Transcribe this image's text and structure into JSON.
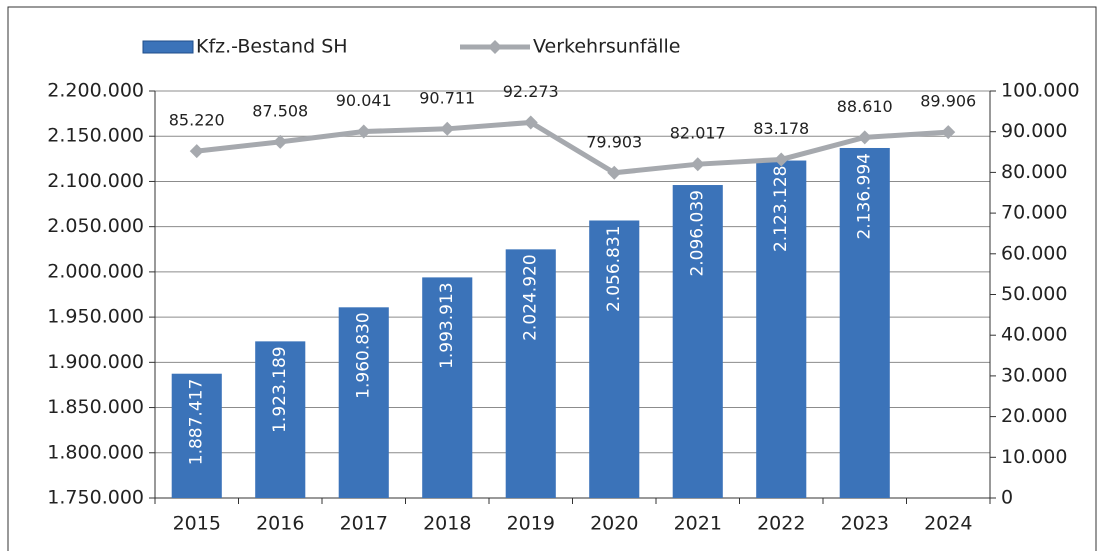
{
  "chart_data": {
    "type": "bar",
    "categories": [
      "2015",
      "2016",
      "2017",
      "2018",
      "2019",
      "2020",
      "2021",
      "2022",
      "2023",
      "2024"
    ],
    "series": [
      {
        "name": "Kfz.-Bestand SH",
        "color": "#3b73b9",
        "type": "bar",
        "values": [
          1887417,
          1923189,
          1960830,
          1993913,
          2024920,
          2056831,
          2096039,
          2123128,
          2136994,
          null
        ],
        "value_labels": [
          "1.887.417",
          "1.923.189",
          "1.960.830",
          "1.993.913",
          "2.024.920",
          "2.056.831",
          "2.096.039",
          "2.123.128",
          "2.136.994",
          null
        ]
      },
      {
        "name": "Verkehrsunfälle",
        "color": "#a6a9ae",
        "type": "line",
        "axis": "y2",
        "values": [
          85220,
          87508,
          90041,
          90711,
          92273,
          79903,
          82017,
          83178,
          88610,
          89906
        ],
        "value_labels": [
          "85.220",
          "87.508",
          "90.041",
          "90.711",
          "92.273",
          "79.903",
          "82.017",
          "83.178",
          "88.610",
          "89.906"
        ]
      }
    ],
    "ylim": [
      1750000,
      2200000
    ],
    "yticks": [
      {
        "value": 1750000,
        "label": "1.750.000"
      },
      {
        "value": 1800000,
        "label": "1.800.000"
      },
      {
        "value": 1850000,
        "label": "1.850.000"
      },
      {
        "value": 1900000,
        "label": "1.900.000"
      },
      {
        "value": 1950000,
        "label": "1.950.000"
      },
      {
        "value": 2000000,
        "label": "2.000.000"
      },
      {
        "value": 2050000,
        "label": "2.050.000"
      },
      {
        "value": 2100000,
        "label": "2.100.000"
      },
      {
        "value": 2150000,
        "label": "2.150.000"
      },
      {
        "value": 2200000,
        "label": "2.200.000"
      }
    ],
    "y2lim": [
      0,
      100000
    ],
    "y2ticks": [
      0,
      {
        "value": 10000,
        "label": "10.000"
      },
      {
        "value": 20000,
        "label": "20.000"
      },
      {
        "value": 30000,
        "label": "30.000"
      },
      {
        "value": 40000,
        "label": "40.000"
      },
      {
        "value": 50000,
        "label": "50.000"
      },
      {
        "value": 60000,
        "label": "60.000"
      },
      {
        "value": 70000,
        "label": "70.000"
      },
      {
        "value": 80000,
        "label": "80.000"
      },
      {
        "value": 90000,
        "label": "90.000"
      },
      {
        "value": 100000,
        "label": "100.000"
      }
    ],
    "grid": true,
    "legend": "top"
  }
}
